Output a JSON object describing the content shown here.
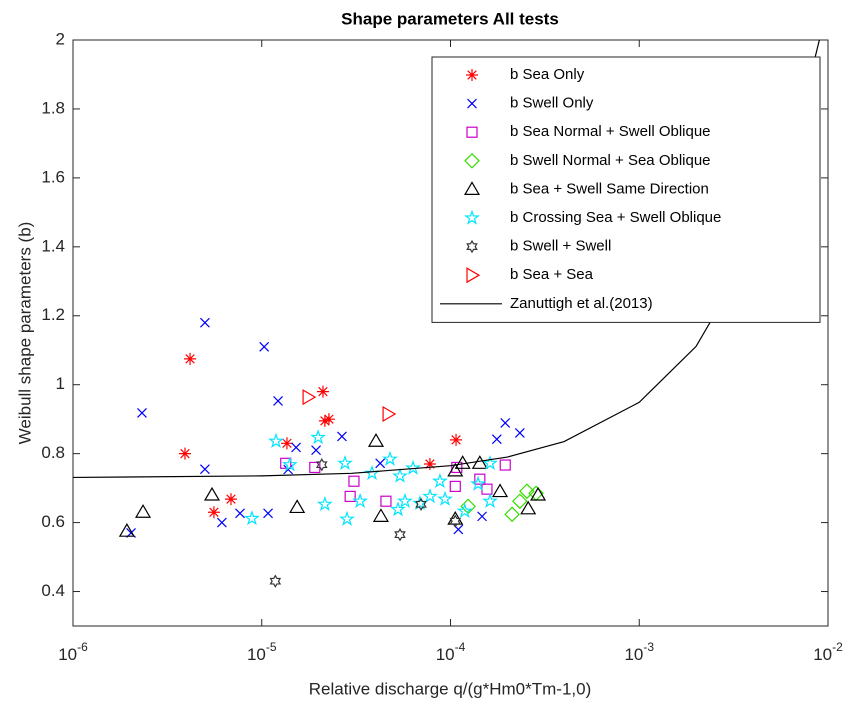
{
  "chart_data": {
    "type": "scatter",
    "title": "Shape parameters All tests",
    "x_label": "Relative discharge q/(g*Hm0*Tm-1,0)",
    "y_label": "Weibull shape parameters (b)",
    "x_scale": "log",
    "xlim": [
      1e-06,
      0.01
    ],
    "ylim": [
      0.3,
      2
    ],
    "xticks": [
      {
        "value": 1e-06,
        "label": "10-6"
      },
      {
        "value": 1e-05,
        "label": "10-5"
      },
      {
        "value": 0.0001,
        "label": "10-4"
      },
      {
        "value": 0.001,
        "label": "10-3"
      },
      {
        "value": 0.01,
        "label": "10-2"
      }
    ],
    "yticks": [
      0.4,
      0.6,
      0.8,
      1,
      1.2,
      1.4,
      1.6,
      1.8,
      2
    ],
    "legend_position": "upper right",
    "series": [
      {
        "name": "b Sea Only",
        "marker": "asterisk",
        "color": "#ff0000",
        "x": [
          4.17e-06,
          3.92e-06,
          5.58e-06,
          6.87e-06,
          1.36e-05,
          2.11e-05,
          2.16e-05,
          2.27e-05,
          0.000107,
          7.78e-05
        ],
        "values": [
          1.075,
          0.8,
          0.63,
          0.668,
          0.83,
          0.98,
          0.895,
          0.9,
          0.84,
          0.77
        ]
      },
      {
        "name": "b Swell Only",
        "marker": "x",
        "color": "#0000ff",
        "x": [
          5e-06,
          2.32e-06,
          5e-06,
          2.03e-06,
          6.15e-06,
          7.67e-06,
          1.03e-05,
          1.22e-05,
          1.08e-05,
          1.52e-05,
          1.38e-05,
          1.94e-05,
          2.66e-05,
          0.00011,
          0.000147,
          0.000195,
          0.000176,
          0.000233,
          4.24e-05
        ],
        "values": [
          1.18,
          0.918,
          0.755,
          0.57,
          0.6,
          0.627,
          1.11,
          0.953,
          0.627,
          0.818,
          0.754,
          0.81,
          0.85,
          0.58,
          0.618,
          0.889,
          0.842,
          0.86,
          0.772
        ]
      },
      {
        "name": "b Sea Normal + Swell Oblique",
        "marker": "square",
        "color": "#cc00cc",
        "x": [
          1.34e-05,
          1.91e-05,
          3.08e-05,
          2.94e-05,
          4.55e-05,
          0.000106,
          0.000143,
          0.000156,
          0.000195,
          0.000108
        ],
        "values": [
          0.772,
          0.76,
          0.72,
          0.676,
          0.662,
          0.705,
          0.726,
          0.697,
          0.767,
          0.76
        ]
      },
      {
        "name": "b Swell Normal + Sea Oblique",
        "marker": "diamond",
        "color": "#33dd00",
        "x": [
          0.000212,
          0.000233,
          0.000254,
          0.000284,
          0.000124
        ],
        "values": [
          0.624,
          0.662,
          0.691,
          0.685,
          0.647
        ]
      },
      {
        "name": "b Sea + Swell Same Direction",
        "marker": "triangle",
        "color": "#000000",
        "x": [
          1.93e-06,
          2.35e-06,
          5.45e-06,
          1.54e-05,
          4.03e-05,
          4.28e-05,
          0.000106,
          0.000116,
          0.000143,
          0.000183,
          0.000258,
          0.000291,
          0.000106
        ],
        "values": [
          0.575,
          0.63,
          0.68,
          0.644,
          0.836,
          0.618,
          0.75,
          0.772,
          0.772,
          0.69,
          0.64,
          0.68,
          0.61
        ]
      },
      {
        "name": "b Crossing Sea + Swell Oblique",
        "marker": "pentagram",
        "color": "#00e5ff",
        "x": [
          8.87e-06,
          1.19e-05,
          1.41e-05,
          1.99e-05,
          2.16e-05,
          2.76e-05,
          2.83e-05,
          3.84e-05,
          4.78e-05,
          5.4e-05,
          5.74e-05,
          6.33e-05,
          7.79e-05,
          8.79e-05,
          9.35e-05,
          0.000119,
          0.00014,
          0.000162,
          0.000162,
          6.89e-05,
          3.32e-05,
          5.27e-05
        ],
        "values": [
          0.612,
          0.836,
          0.768,
          0.847,
          0.653,
          0.772,
          0.61,
          0.743,
          0.784,
          0.735,
          0.662,
          0.758,
          0.676,
          0.72,
          0.668,
          0.633,
          0.712,
          0.772,
          0.662,
          0.656,
          0.662,
          0.638
        ]
      },
      {
        "name": "b Swell + Swell",
        "marker": "hexagram",
        "color": "#333333",
        "x": [
          1.18e-05,
          2.08e-05,
          5.4e-05,
          6.98e-05,
          0.000106
        ],
        "values": [
          0.43,
          0.768,
          0.565,
          0.653,
          0.604
        ]
      },
      {
        "name": "b Sea + Sea",
        "marker": "triangle-right",
        "color": "#ff0000",
        "x": [
          1.76e-05,
          4.67e-05
        ],
        "values": [
          0.964,
          0.915
        ]
      },
      {
        "name": "Zanuttigh et al.(2013)",
        "marker": "line",
        "color": "#000000",
        "x": [
          1e-06,
          1e-05,
          3e-05,
          0.0001,
          0.0002,
          0.0004,
          0.001,
          0.002,
          0.004,
          0.006,
          0.008,
          0.009
        ],
        "values": [
          0.731,
          0.7355,
          0.743,
          0.765,
          0.79,
          0.835,
          0.949,
          1.111,
          1.394,
          1.648,
          1.886,
          2.0
        ]
      }
    ]
  }
}
